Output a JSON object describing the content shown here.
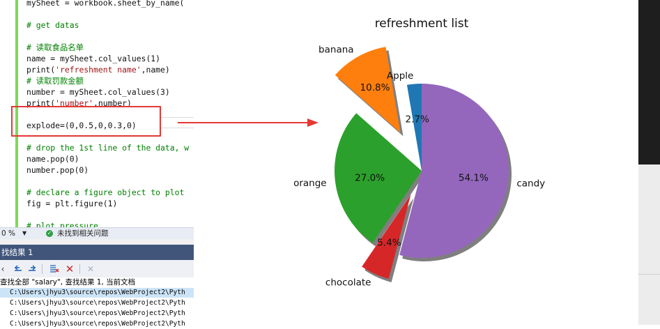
{
  "editor": {
    "lines": [
      {
        "parts": [
          {
            "t": "mySheet = workbook.sheet_by_name(",
            "c": ""
          }
        ]
      },
      {
        "parts": []
      },
      {
        "parts": [
          {
            "t": "# get datas",
            "c": "cmt"
          }
        ]
      },
      {
        "parts": []
      },
      {
        "parts": [
          {
            "t": "# 读取食品名单",
            "c": "cmt"
          }
        ]
      },
      {
        "parts": [
          {
            "t": "name = mySheet.col_values(1)",
            "c": ""
          }
        ]
      },
      {
        "parts": [
          {
            "t": "print(",
            "c": ""
          },
          {
            "t": "'refreshment name'",
            "c": "str"
          },
          {
            "t": ",name)",
            "c": ""
          }
        ]
      },
      {
        "parts": [
          {
            "t": "# 读取罚款金额",
            "c": "cmt"
          }
        ]
      },
      {
        "parts": [
          {
            "t": "number = mySheet.col_values(3)",
            "c": ""
          }
        ]
      },
      {
        "parts": [
          {
            "t": "print(",
            "c": ""
          },
          {
            "t": "'number'",
            "c": "str"
          },
          {
            "t": ",number)",
            "c": ""
          }
        ]
      },
      {
        "parts": []
      },
      {
        "parts": [
          {
            "t": "explode=(0,0.5,0,0.3,0)",
            "c": ""
          }
        ]
      },
      {
        "parts": []
      },
      {
        "parts": [
          {
            "t": "# drop the 1st line of the data, w",
            "c": "cmt"
          }
        ]
      },
      {
        "parts": [
          {
            "t": "name.pop(0)",
            "c": ""
          }
        ]
      },
      {
        "parts": [
          {
            "t": "number.pop(0)",
            "c": ""
          }
        ]
      },
      {
        "parts": []
      },
      {
        "parts": [
          {
            "t": "# declare a figure object to plot",
            "c": "cmt"
          }
        ]
      },
      {
        "parts": [
          {
            "t": "fig = plt.figure(1)",
            "c": ""
          }
        ]
      },
      {
        "parts": []
      },
      {
        "parts": [
          {
            "t": "# plot pressure",
            "c": "cmt"
          }
        ]
      }
    ]
  },
  "statusbar": {
    "zoom": "0 %",
    "zoom_dropdown": "▼",
    "status_icon": "check-icon",
    "status_text": "未找到相关问题"
  },
  "find_panel": {
    "title": "找结果 1",
    "summary": "查找全部 \"salary\", 查找结果 1, 当前文档",
    "results": [
      "C:\\Users\\jhyu3\\source\\repos\\WebProject2\\Pyth",
      "C:\\Users\\jhyu3\\source\\repos\\WebProject2\\Pyth",
      "C:\\Users\\jhyu3\\source\\repos\\WebProject2\\Pyth",
      "C:\\Users\\jhyu3\\source\\repos\\WebProject2\\Pyth"
    ]
  },
  "chart_data": {
    "type": "pie",
    "title": "refreshment list",
    "slices": [
      {
        "label": "Apple",
        "value": 2.7,
        "pct_label": "2.7%",
        "color": "#1f77b4",
        "explode": 0
      },
      {
        "label": "banana",
        "value": 10.8,
        "pct_label": "10.8%",
        "color": "#ff7f0e",
        "explode": 0.5
      },
      {
        "label": "orange",
        "value": 27.0,
        "pct_label": "27.0%",
        "color": "#2ca02c",
        "explode": 0
      },
      {
        "label": "chocolate",
        "value": 5.4,
        "pct_label": "5.4%",
        "color": "#d62728",
        "explode": 0.3
      },
      {
        "label": "candy",
        "value": 54.1,
        "pct_label": "54.1%",
        "color": "#9467bd",
        "explode": 0
      }
    ],
    "start_angle": 90,
    "shadow": true
  }
}
